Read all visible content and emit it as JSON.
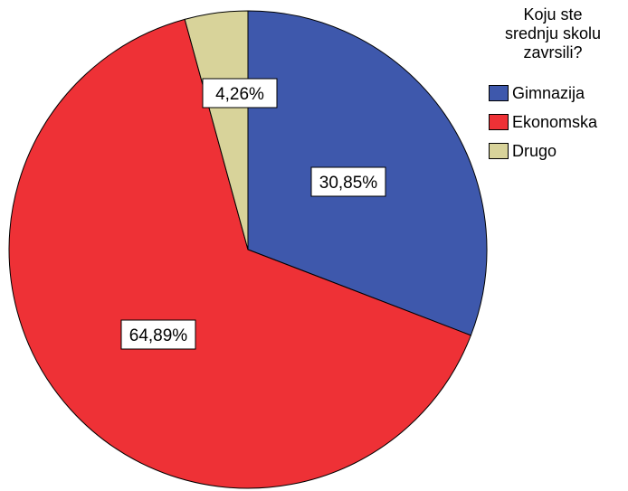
{
  "chart_data": {
    "type": "pie",
    "title": "",
    "legend_title_lines": [
      "Koju ste",
      "srednju skolu",
      "zavrsili?"
    ],
    "legend_position": "top-right",
    "slices": [
      {
        "name": "Gimnazija",
        "value": 30.85,
        "label": "30,85%",
        "color": "#3e58ac"
      },
      {
        "name": "Ekonomska",
        "value": 64.89,
        "label": "64,89%",
        "color": "#ee3136"
      },
      {
        "name": "Drugo",
        "value": 4.26,
        "label": "4,26%",
        "color": "#d8d39a"
      }
    ]
  }
}
